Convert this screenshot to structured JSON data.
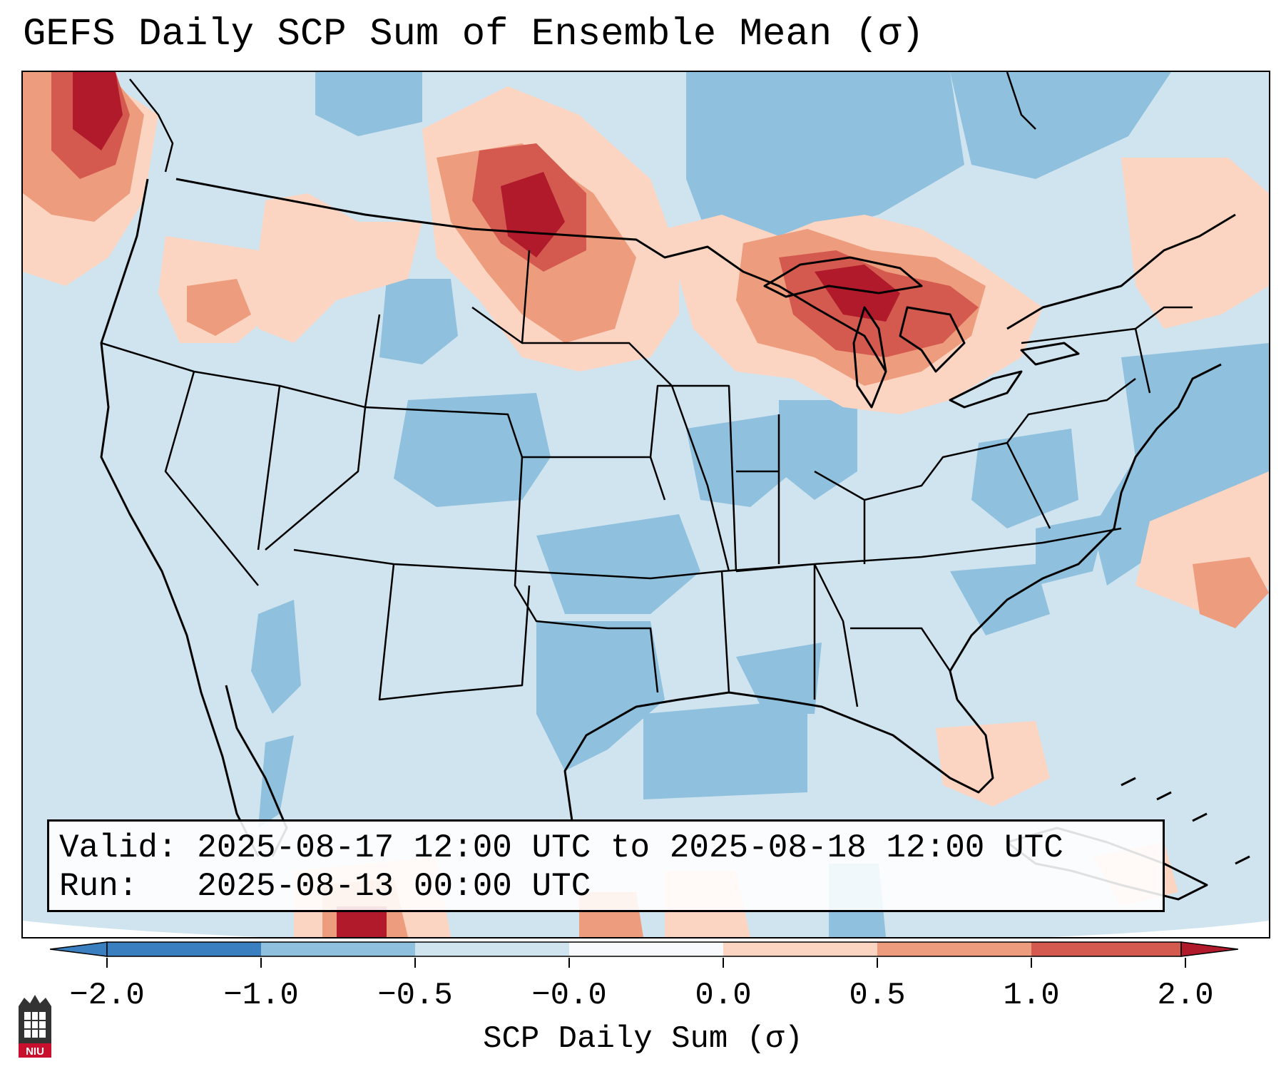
{
  "title": "GEFS Daily SCP Sum of Ensemble Mean (σ)",
  "info": {
    "valid_line": "Valid: 2025-08-17 12:00 UTC to 2025-08-18 12:00 UTC",
    "run_line": "Run:   2025-08-13 00:00 UTC"
  },
  "colorbar": {
    "label": "SCP Daily Sum (σ)",
    "ticks": [
      "−2.0",
      "−1.0",
      "−0.5",
      "−0.0",
      "0.0",
      "0.5",
      "1.0",
      "2.0"
    ],
    "colors": [
      "#3a7fbf",
      "#8fc0dd",
      "#d0e4f0",
      "#f7f9fc",
      "#fbd5c2",
      "#ee9c7e",
      "#d45a4f",
      "#b11a2b"
    ]
  },
  "logo": {
    "text": "NIU",
    "color": "#c8102e"
  },
  "map": {
    "region": "Contiguous United States",
    "features": [
      "state-boundaries",
      "coastlines",
      "great-lakes",
      "international-boundaries"
    ],
    "anomaly_regions": [
      {
        "name": "upper-midwest-great-lakes",
        "level": "1.0 to 2.0"
      },
      {
        "name": "northern-plains-dakotas-montana",
        "level": "1.0 to 2.0"
      },
      {
        "name": "pacific-northwest-british-columbia",
        "level": "1.0 to 2.0"
      },
      {
        "name": "northeast-new-england",
        "level": "0.0 to 0.5"
      },
      {
        "name": "western-atlantic",
        "level": "0.5 to 1.0"
      },
      {
        "name": "florida",
        "level": "0.0 to 0.5"
      },
      {
        "name": "southern-plains-texas",
        "level": "-1.0 to -0.5"
      },
      {
        "name": "colorado-kansas",
        "level": "-1.0 to -0.5"
      },
      {
        "name": "gulf-of-mexico",
        "level": "-1.0 to -0.5"
      },
      {
        "name": "canada-north-of-lakes",
        "level": "-1.0 to -0.5"
      }
    ]
  }
}
